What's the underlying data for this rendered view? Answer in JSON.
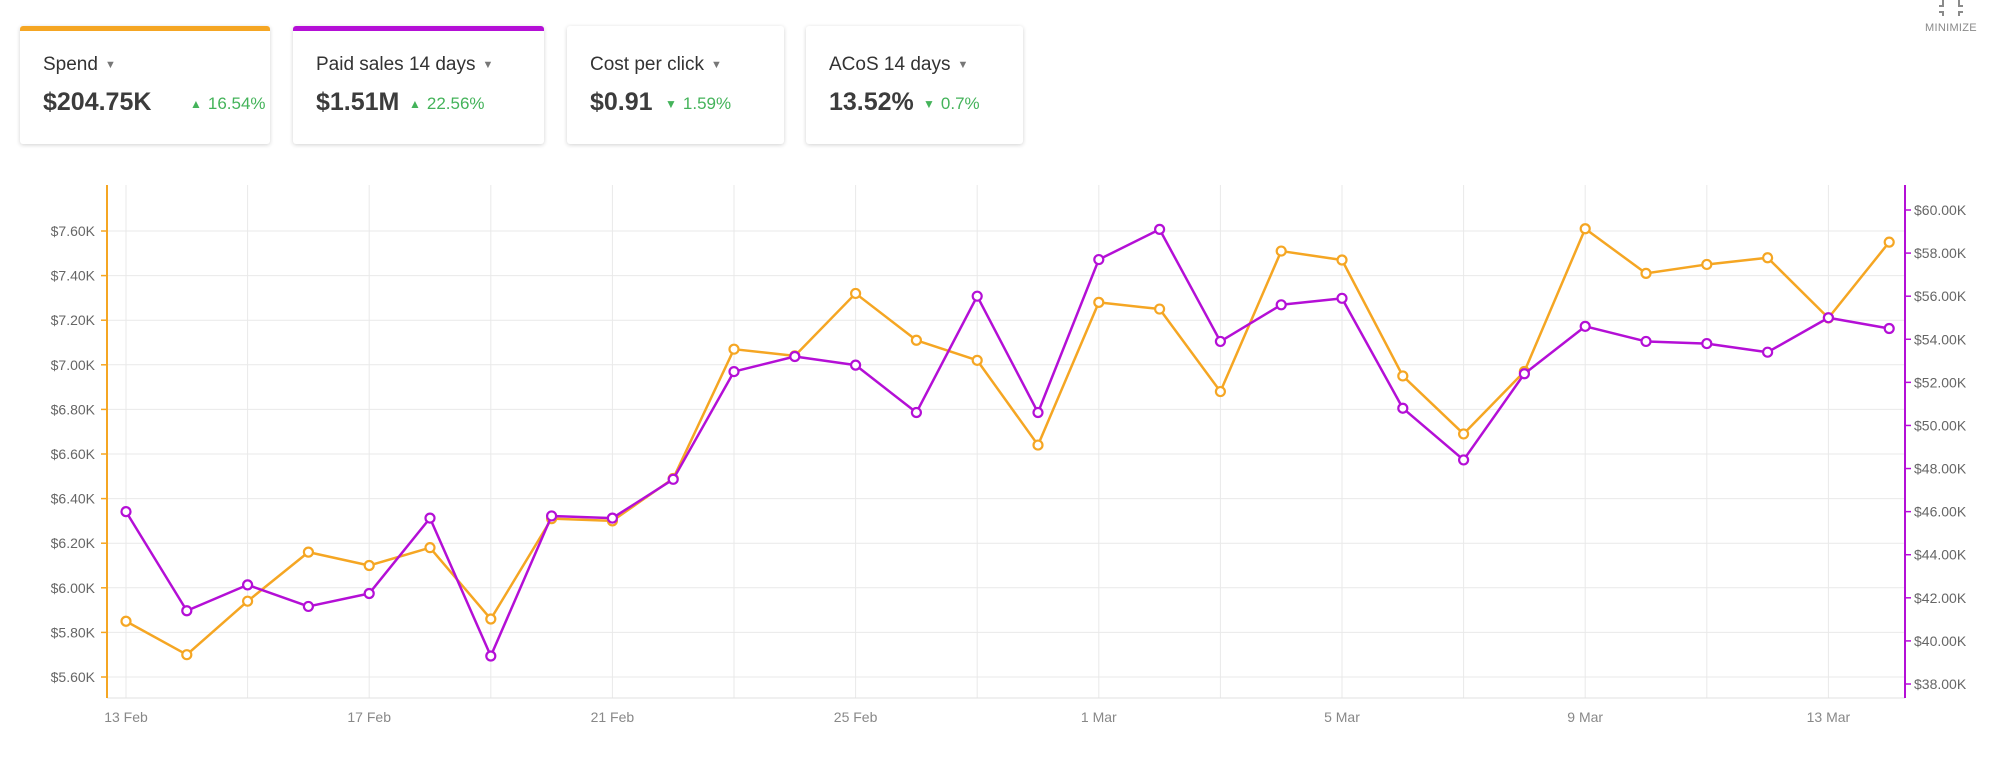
{
  "minimize_label": "MINIMIZE",
  "cards": [
    {
      "title": "Spend",
      "value": "$204.75K",
      "delta": "16.54%",
      "direction": "up",
      "accent": "#f5a623"
    },
    {
      "title": "Paid sales 14 days",
      "value": "$1.51M",
      "delta": "22.56%",
      "direction": "up",
      "accent": "#b40fd6"
    },
    {
      "title": "Cost per click",
      "value": "$0.91",
      "delta": "1.59%",
      "direction": "down",
      "accent": ""
    },
    {
      "title": "ACoS 14 days",
      "value": "13.52%",
      "delta": "0.7%",
      "direction": "down",
      "accent": ""
    }
  ],
  "chart_data": {
    "type": "line",
    "x": [
      "13 Feb",
      "14 Feb",
      "15 Feb",
      "16 Feb",
      "17 Feb",
      "18 Feb",
      "19 Feb",
      "20 Feb",
      "21 Feb",
      "22 Feb",
      "23 Feb",
      "24 Feb",
      "25 Feb",
      "26 Feb",
      "27 Feb",
      "28 Feb",
      "1 Mar",
      "2 Mar",
      "3 Mar",
      "4 Mar",
      "5 Mar",
      "6 Mar",
      "7 Mar",
      "8 Mar",
      "9 Mar",
      "10 Mar",
      "11 Mar",
      "12 Mar",
      "13 Mar",
      "14 Mar"
    ],
    "x_tick_labels": [
      "13 Feb",
      "17 Feb",
      "21 Feb",
      "25 Feb",
      "1 Mar",
      "5 Mar",
      "9 Mar",
      "13 Mar"
    ],
    "grid": true,
    "series": [
      {
        "axis": "left",
        "color": "#f5a623",
        "values": [
          5.85,
          5.7,
          5.94,
          6.16,
          6.1,
          6.18,
          5.86,
          6.31,
          6.3,
          6.49,
          7.07,
          7.04,
          7.32,
          7.11,
          7.02,
          6.64,
          7.28,
          7.25,
          6.88,
          7.51,
          7.47,
          6.95,
          6.69,
          6.97,
          7.61,
          7.41,
          7.45,
          7.48,
          7.21,
          7.55
        ]
      },
      {
        "axis": "right",
        "color": "#b40fd6",
        "values": [
          46.0,
          41.4,
          42.6,
          41.6,
          42.2,
          45.7,
          39.3,
          45.8,
          45.7,
          47.5,
          52.5,
          53.2,
          52.8,
          50.6,
          56.0,
          50.6,
          57.7,
          59.1,
          53.9,
          55.6,
          55.9,
          50.8,
          48.4,
          52.4,
          54.6,
          53.9,
          53.8,
          53.4,
          55.0,
          54.5
        ]
      }
    ],
    "y_left": {
      "ticks": [
        "$5.60K",
        "$5.80K",
        "$6.00K",
        "$6.20K",
        "$6.40K",
        "$6.60K",
        "$6.80K",
        "$7.00K",
        "$7.20K",
        "$7.40K",
        "$7.60K"
      ],
      "min": 5.6,
      "max": 7.6,
      "step": 0.2
    },
    "y_right": {
      "ticks": [
        "$38.00K",
        "$40.00K",
        "$42.00K",
        "$44.00K",
        "$46.00K",
        "$48.00K",
        "$50.00K",
        "$52.00K",
        "$54.00K",
        "$56.00K",
        "$58.00K",
        "$60.00K"
      ],
      "min": 38,
      "max": 60,
      "step": 2
    }
  }
}
